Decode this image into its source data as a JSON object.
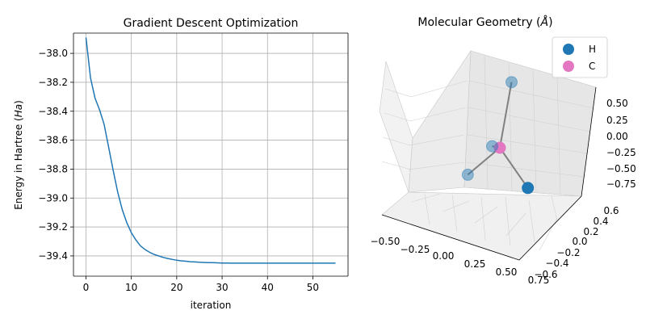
{
  "chart_data": [
    {
      "type": "line",
      "title": "Gradient Descent Optimization",
      "xlabel": "iteration",
      "ylabel": "Energy in Hartree (Ha)",
      "ylabel_parts": [
        "Energy in Hartree (",
        "Ha",
        ")"
      ],
      "xlim": [
        -2.75,
        57.75
      ],
      "ylim": [
        -39.54,
        -37.86
      ],
      "xticks": [
        0,
        10,
        20,
        30,
        40,
        50
      ],
      "yticks": [
        -38.0,
        -38.2,
        -38.4,
        -38.6,
        -38.8,
        -39.0,
        -39.2,
        -39.4
      ],
      "grid": true,
      "color": "#1f77b4",
      "x": [
        0,
        1,
        2,
        3,
        4,
        5,
        6,
        7,
        8,
        9,
        10,
        11,
        12,
        13,
        14,
        15,
        16,
        17,
        18,
        19,
        20,
        21,
        22,
        23,
        24,
        25,
        26,
        27,
        28,
        29,
        30,
        31,
        32,
        33,
        34,
        35,
        36,
        37,
        38,
        39,
        40,
        41,
        42,
        43,
        44,
        45,
        46,
        47,
        48,
        49,
        50,
        51,
        52,
        53,
        54,
        55
      ],
      "y": [
        -37.89,
        -38.17,
        -38.31,
        -38.39,
        -38.49,
        -38.65,
        -38.81,
        -38.96,
        -39.08,
        -39.17,
        -39.24,
        -39.29,
        -39.33,
        -39.355,
        -39.375,
        -39.39,
        -39.4,
        -39.41,
        -39.418,
        -39.424,
        -39.43,
        -39.434,
        -39.437,
        -39.44,
        -39.442,
        -39.444,
        -39.445,
        -39.446,
        -39.447,
        -39.448,
        -39.449,
        -39.449,
        -39.45,
        -39.45,
        -39.45,
        -39.45,
        -39.45,
        -39.45,
        -39.45,
        -39.45,
        -39.45,
        -39.45,
        -39.45,
        -39.45,
        -39.45,
        -39.45,
        -39.45,
        -39.45,
        -39.45,
        -39.45,
        -39.45,
        -39.45,
        -39.45,
        -39.45,
        -39.45,
        -39.45
      ]
    },
    {
      "type": "scatter3d",
      "title": "Molecular Geometry",
      "title_unit": "Å",
      "xticks": [
        "−0.50",
        "−0.25",
        "0.00",
        "0.25",
        "0.50",
        "0.75"
      ],
      "yticks": [
        "−0.6",
        "−0.4",
        "−0.2",
        "0.0",
        "0.2",
        "0.4",
        "0.6"
      ],
      "zticks": [
        "0.50",
        "0.25",
        "0.00",
        "−0.25",
        "−0.50",
        "−0.75"
      ],
      "legend": [
        {
          "label": "H",
          "color": "#1f77b4"
        },
        {
          "label": "C",
          "color": "#e377c2"
        }
      ],
      "legend_position": "top-right",
      "bond_color": "#808080",
      "atoms": [
        {
          "element": "C",
          "x": 0.0,
          "y": 0.0,
          "z": 0.0
        },
        {
          "element": "H",
          "x": 0.63,
          "y": 0.63,
          "z": 0.63
        },
        {
          "element": "H",
          "x": -0.63,
          "y": -0.63,
          "z": 0.63
        },
        {
          "element": "H",
          "x": -0.63,
          "y": 0.63,
          "z": -0.63
        },
        {
          "element": "H",
          "x": 0.63,
          "y": -0.63,
          "z": -0.63
        }
      ]
    }
  ]
}
